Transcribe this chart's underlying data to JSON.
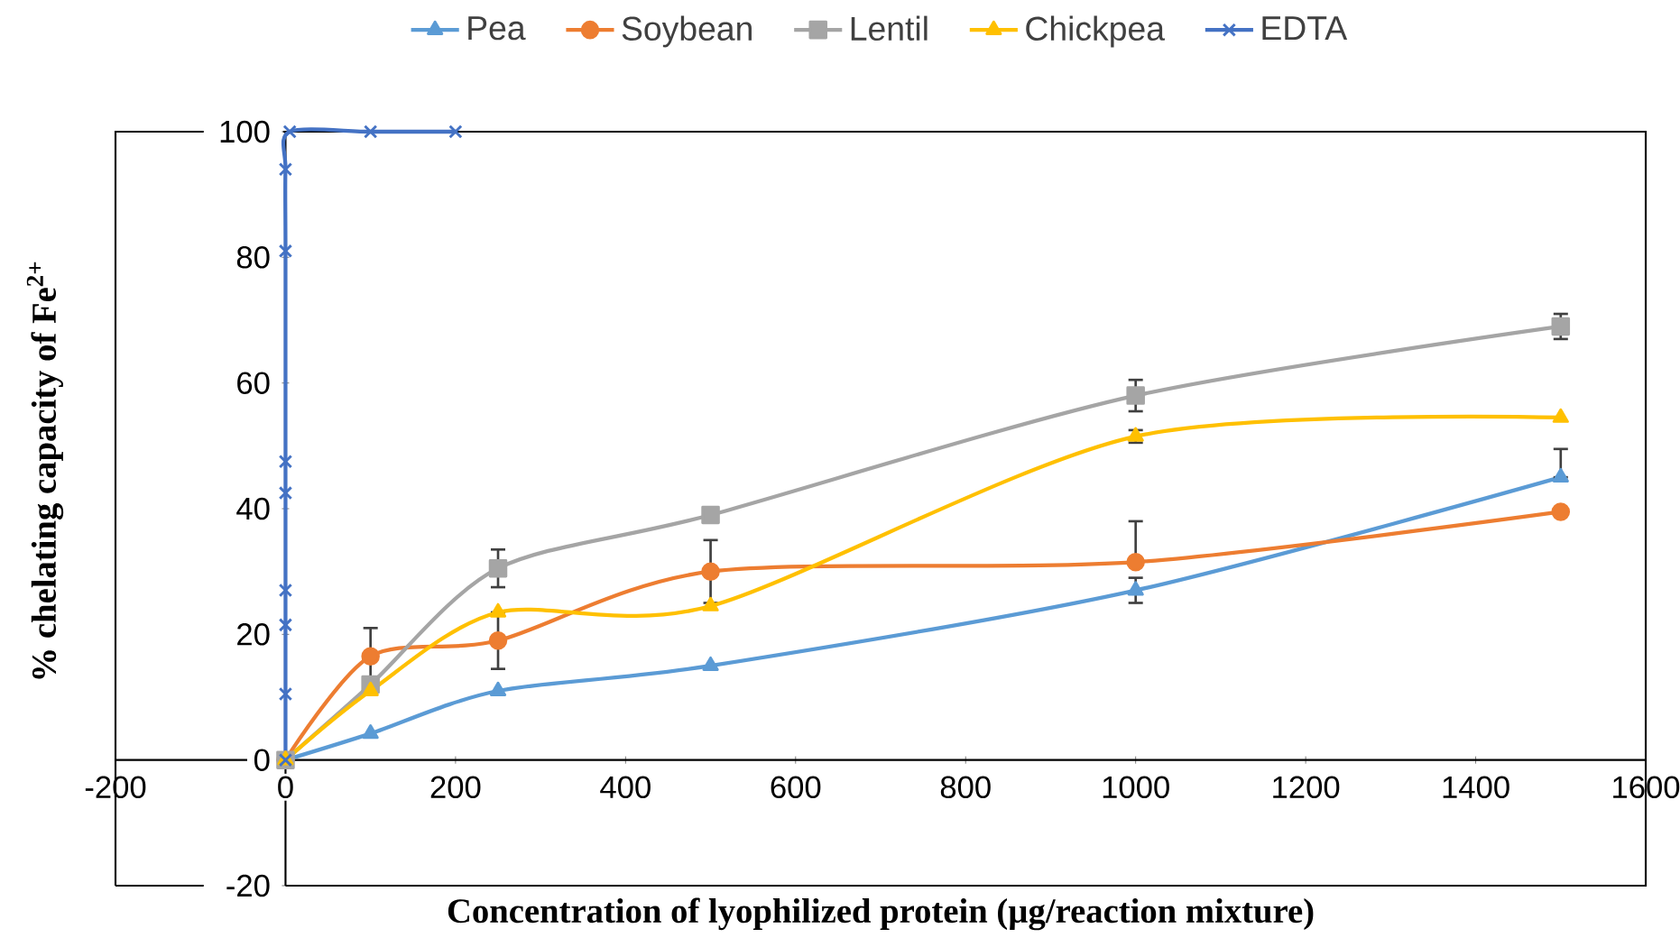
{
  "chart_data": {
    "type": "line",
    "xlabel": "Concentration of lyophilized  protein (µg/reaction mixture)",
    "ylabel": "% chelating capacity of Fe$^{2+}$",
    "xlim": [
      -200,
      1600
    ],
    "xticks": [
      -200,
      0,
      200,
      400,
      600,
      800,
      1000,
      1200,
      1400,
      1600
    ],
    "ylim": [
      -20,
      100
    ],
    "yticks": [
      -20,
      0,
      20,
      40,
      60,
      80,
      100
    ],
    "grid": false,
    "legend": "top",
    "series": [
      {
        "name": "Pea",
        "color": "#5b9bd5",
        "marker": "triangle",
        "x": [
          0,
          100,
          250,
          500,
          1000,
          1500
        ],
        "values": [
          0,
          4.2,
          11,
          15,
          27,
          45
        ],
        "errors": [
          null,
          null,
          null,
          null,
          2,
          [
            45,
            49.5
          ]
        ]
      },
      {
        "name": "Soybean",
        "color": "#ed7d31",
        "marker": "circle",
        "x": [
          0,
          100,
          250,
          500,
          1000,
          1500
        ],
        "values": [
          0,
          16.5,
          19,
          30,
          31.5,
          39.5
        ],
        "errors": [
          null,
          4.5,
          4.5,
          5,
          [
            31.5,
            38
          ],
          null
        ]
      },
      {
        "name": "Lentil",
        "color": "#a5a5a5",
        "marker": "square",
        "x": [
          0,
          100,
          250,
          500,
          1000,
          1500
        ],
        "values": [
          0,
          12,
          30.5,
          39,
          58,
          69
        ],
        "errors": [
          null,
          null,
          3,
          null,
          2.5,
          2
        ]
      },
      {
        "name": "Chickpea",
        "color": "#ffc000",
        "marker": "triangle",
        "x": [
          0,
          100,
          250,
          500,
          1000,
          1500
        ],
        "values": [
          0,
          11,
          23.5,
          24.5,
          51.5,
          54.5
        ],
        "errors": [
          null,
          null,
          null,
          null,
          1,
          null
        ]
      },
      {
        "name": "EDTA",
        "color": "#4472c4",
        "marker": "cross",
        "x": [
          0,
          0,
          0,
          0,
          0,
          0,
          0,
          0,
          5,
          100,
          200
        ],
        "values": [
          0,
          10.5,
          21.5,
          27,
          42.5,
          47.5,
          81,
          94,
          100,
          100,
          100
        ]
      }
    ]
  }
}
